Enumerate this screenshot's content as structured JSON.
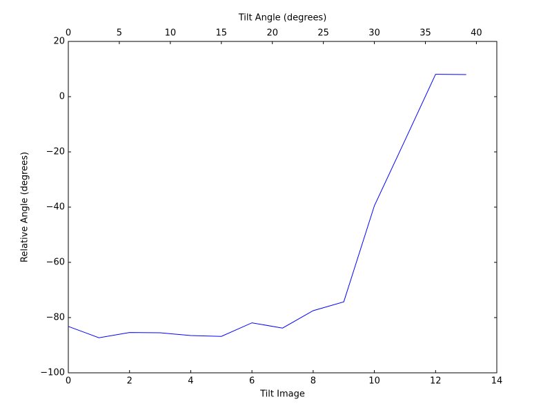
{
  "chart_data": {
    "type": "line",
    "xlabel": "Tilt Image",
    "ylabel": "Relative Angle (degrees)",
    "x2label": "Tilt Angle (degrees)",
    "x": [
      0,
      1,
      2,
      3,
      4,
      5,
      6,
      7,
      8,
      9,
      10,
      11,
      12,
      13
    ],
    "series": [
      {
        "color": "#0000ff",
        "values": [
          -83.2,
          -87.3,
          -85.4,
          -85.5,
          -86.5,
          -86.8,
          -81.9,
          -83.8,
          -77.5,
          -74.3,
          -39.5,
          -15.8,
          8.1,
          8.0
        ]
      }
    ],
    "xlim": [
      0,
      14
    ],
    "xticks": [
      0,
      2,
      4,
      6,
      8,
      10,
      12,
      14
    ],
    "x2lim": [
      0,
      42
    ],
    "x2ticks": [
      0,
      5,
      10,
      15,
      20,
      25,
      30,
      35,
      40
    ],
    "ylim": [
      -100,
      20
    ],
    "yticks": [
      {
        "value": -100,
        "label": "−100"
      },
      {
        "value": -80,
        "label": "−80"
      },
      {
        "value": -60,
        "label": "−60"
      },
      {
        "value": -40,
        "label": "−40"
      },
      {
        "value": -20,
        "label": "−20"
      },
      0,
      20
    ]
  }
}
